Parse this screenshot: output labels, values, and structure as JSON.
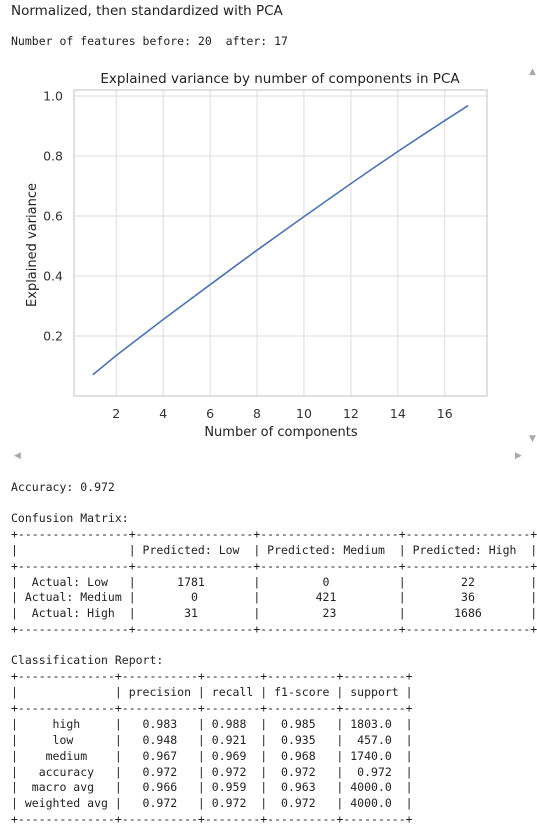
{
  "heading": "Normalized, then standardized with PCA",
  "features_line": "Number of features before: 20  after: 17",
  "colors": {
    "line": "#4c72b0",
    "grid": "#dddddd",
    "frame": "#cccccc"
  },
  "scroll_icons": {
    "up": "▲",
    "down": "▼",
    "left": "◀",
    "right": "▶"
  },
  "chart_data": {
    "type": "line",
    "title": "Explained variance by number of components in PCA",
    "xlabel": "Number of components",
    "ylabel": "Explained variance",
    "x": [
      1,
      2,
      3,
      4,
      5,
      6,
      7,
      8,
      9,
      10,
      11,
      12,
      13,
      14,
      15,
      16,
      17
    ],
    "y": [
      0.071,
      0.135,
      0.195,
      0.255,
      0.313,
      0.371,
      0.429,
      0.486,
      0.542,
      0.598,
      0.653,
      0.708,
      0.762,
      0.815,
      0.867,
      0.918,
      0.968
    ],
    "xlim": [
      0.2,
      17.8
    ],
    "ylim": [
      0.0,
      1.02
    ],
    "xticks": [
      2,
      4,
      6,
      8,
      10,
      12,
      14,
      16
    ],
    "yticks": [
      0.2,
      0.4,
      0.6,
      0.8,
      1.0
    ],
    "grid": true
  },
  "accuracy_line": "Accuracy: 0.972",
  "confusion_title": "Confusion Matrix:",
  "confusion_table": "+----------------+-----------------+--------------------+------------------+\n|                | Predicted: Low  | Predicted: Medium  | Predicted: High  |\n+----------------+-----------------+--------------------+------------------+\n|  Actual: Low   |      1781       |         0          |        22        |\n| Actual: Medium |        0        |        421         |        36        |\n|  Actual: High  |       31        |         23         |       1686       |\n+----------------+-----------------+--------------------+------------------+",
  "report_title": "Classification Report:",
  "report_table": "+--------------+-----------+--------+----------+---------+\n|              | precision | recall | f1-score | support |\n+--------------+-----------+--------+----------+---------+\n|     high     |   0.983   | 0.988  |  0.985   | 1803.0  |\n|     low      |   0.948   | 0.921  |  0.935   |  457.0  |\n|    medium    |   0.967   | 0.969  |  0.968   | 1740.0  |\n|   accuracy   |   0.972   | 0.972  |  0.972   |  0.972  |\n|  macro avg   |   0.966   | 0.959  |  0.963   | 4000.0  |\n| weighted avg |   0.972   | 0.972  |  0.972   | 4000.0  |\n+--------------+-----------+--------+----------+---------+"
}
